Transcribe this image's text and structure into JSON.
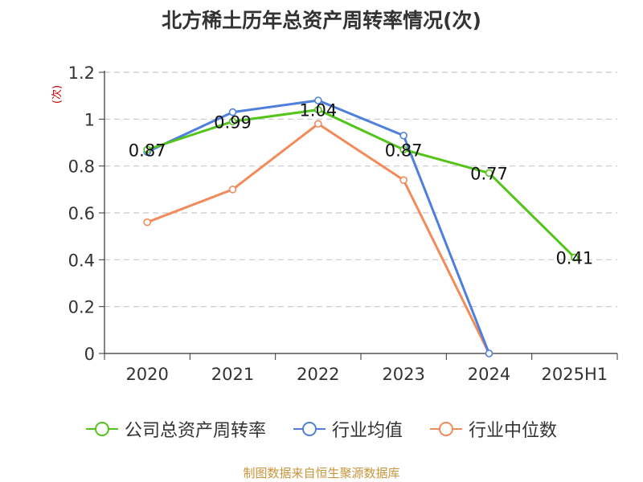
{
  "title": "北方稀土历年总资产周转率情况(次)",
  "unit_label": "(次)",
  "source": "制图数据来自恒生聚源数据库",
  "chart_data": {
    "type": "line",
    "categories": [
      "2020",
      "2021",
      "2022",
      "2023",
      "2024",
      "2025H1"
    ],
    "ylim": [
      0,
      1.2
    ],
    "yticks": [
      0,
      0.2,
      0.4,
      0.6,
      0.8,
      1,
      1.2
    ],
    "ytick_labels": [
      "0",
      "0.2",
      "0.4",
      "0.6",
      "0.8",
      "1",
      "1.2"
    ],
    "grid": true,
    "legend_position": "bottom",
    "series": [
      {
        "name": "公司总资产周转率",
        "color": "#52c41a",
        "values": [
          0.87,
          0.99,
          1.04,
          0.87,
          0.77,
          0.41
        ],
        "labels": [
          "0.87",
          "0.99",
          "1.04",
          "0.87",
          "0.77",
          "0.41"
        ]
      },
      {
        "name": "行业均值",
        "color": "#4e7fdc",
        "values": [
          0.86,
          1.03,
          1.08,
          0.93,
          0.0,
          null
        ]
      },
      {
        "name": "行业中位数",
        "color": "#f28a5a",
        "values": [
          0.56,
          0.7,
          0.98,
          0.74,
          0.0,
          null
        ]
      }
    ]
  }
}
